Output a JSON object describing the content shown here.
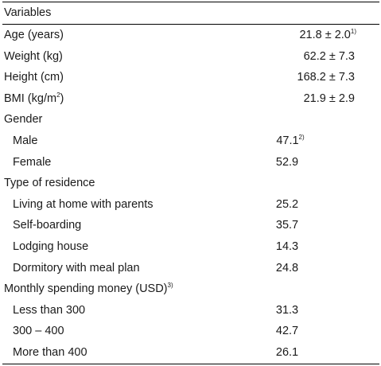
{
  "header": {
    "label": "Variables"
  },
  "continuous": [
    {
      "label": "Age (years)",
      "value": "21.8 ± 2.0",
      "note": "1)"
    },
    {
      "label": "Weight (kg)",
      "value": "62.2 ± 7.3",
      "note": ""
    },
    {
      "label": "Height (cm)",
      "value": "168.2 ± 7.3",
      "note": ""
    },
    {
      "label_main": "BMI (kg/m",
      "label_sup": "2",
      "label_end": ")",
      "value": "21.9 ± 2.9",
      "note": ""
    }
  ],
  "gender": {
    "title": "Gender",
    "items": [
      {
        "label": "Male",
        "value": "47.1",
        "note": "2)"
      },
      {
        "label": "Female",
        "value": "52.9",
        "note": ""
      }
    ]
  },
  "residence": {
    "title": "Type of residence",
    "items": [
      {
        "label": "Living at home with parents",
        "value": "25.2"
      },
      {
        "label": "Self-boarding",
        "value": "35.7"
      },
      {
        "label": "Lodging house",
        "value": "14.3"
      },
      {
        "label": "Dormitory with meal plan",
        "value": "24.8"
      }
    ]
  },
  "spending": {
    "title": "Monthly spending money (USD)",
    "title_note": "3)",
    "items": [
      {
        "label": "Less than 300",
        "value": "31.3"
      },
      {
        "label": "300 – 400",
        "value": "42.7"
      },
      {
        "label": "More than 400",
        "value": "26.1"
      }
    ]
  }
}
